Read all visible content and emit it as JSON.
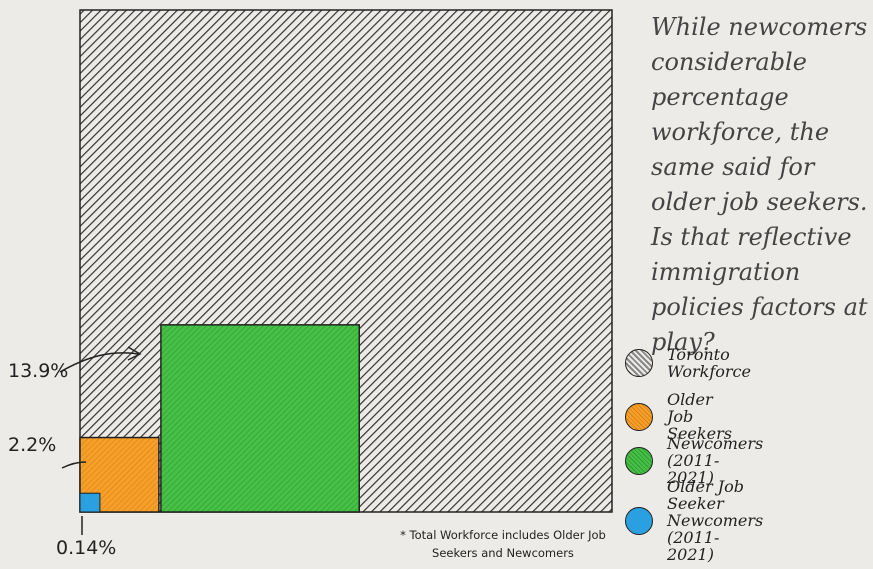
{
  "annotation": "While newcomers considerable percentage workforce, the same said for older job seekers. Is that reflective immigration policies factors at play?",
  "footnote": "* Total Workforce includes Older Job Seekers and Newcomers",
  "colors": {
    "background": "#ecebe8",
    "workforce": "#9a9a9a",
    "older": "#f39a1e",
    "newcomers": "#3fbf3f",
    "older_newcomers": "#2ba0e0"
  },
  "legend": [
    {
      "label": "Toronto Workforce",
      "icon": "gray-hatched-circle-icon"
    },
    {
      "label": "Older Job Seekers",
      "icon": "orange-hatched-circle-icon"
    },
    {
      "label": "Newcomers (2011-2021)",
      "icon": "green-hatched-circle-icon"
    },
    {
      "label": "Older Job Seeker\nNewcomers (2011-2021)",
      "icon": "blue-circle-icon"
    }
  ],
  "chart_data": {
    "type": "area",
    "series": [
      {
        "name": "Toronto Workforce",
        "value": 100
      },
      {
        "name": "Older Job Seekers",
        "value": 2.2
      },
      {
        "name": "Newcomers (2011-2021)",
        "value": 13.9
      },
      {
        "name": "Older Job Seeker Newcomers (2011-2021)",
        "value": 0.14
      }
    ],
    "labels": {
      "older": "2.2%",
      "newcomers": "13.9%",
      "older_newcomers": "0.14%"
    }
  }
}
